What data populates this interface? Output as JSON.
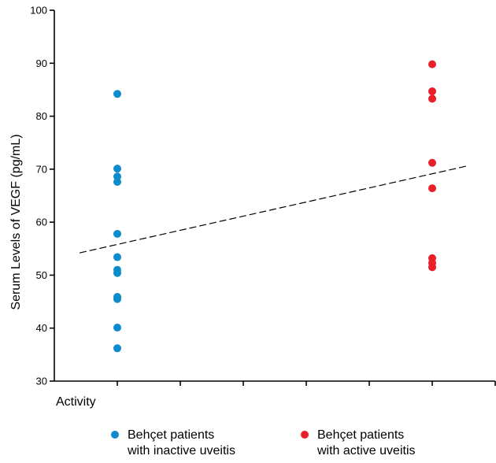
{
  "chart_data": {
    "type": "scatter",
    "title": "",
    "xlabel": "Activity",
    "ylabel": "Serum Levels of VEGF (pg/mL)",
    "ylim": [
      30,
      100
    ],
    "yticks": [
      30,
      40,
      50,
      60,
      70,
      80,
      90,
      100
    ],
    "xlim": [
      0,
      7
    ],
    "xticks": [
      1,
      2,
      3,
      4,
      5,
      6,
      7
    ],
    "grid": false,
    "legend_position": "bottom",
    "series": [
      {
        "name_lines": [
          "Behçet patients",
          "with inactive uveitis"
        ],
        "color": "#0c8ccc",
        "x": 1,
        "values": [
          84.2,
          70.1,
          68.6,
          67.6,
          57.8,
          53.4,
          51.0,
          50.4,
          45.9,
          45.5,
          40.1,
          36.2
        ]
      },
      {
        "name_lines": [
          "Behçet patients",
          "with active uveitis"
        ],
        "color": "#e8202a",
        "x": 6,
        "values": [
          89.8,
          84.7,
          83.3,
          71.2,
          66.4,
          53.2,
          52.3,
          51.5
        ]
      }
    ],
    "trendline": {
      "style": "dashed",
      "x": [
        0.4,
        6.55
      ],
      "y": [
        54.2,
        70.6
      ]
    }
  }
}
